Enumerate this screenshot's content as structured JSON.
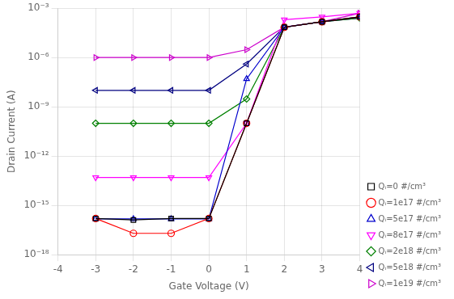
{
  "chart_data": {
    "type": "line",
    "xlabel": "Gate Voltage (V)",
    "ylabel": "Drain Current (A)",
    "x": [
      -3,
      -2,
      -1,
      0,
      1,
      2,
      3,
      4
    ],
    "series": [
      {
        "name": "Qᵢ=0 #/cm³",
        "color": "#000000",
        "marker": "square",
        "values": [
          1.6e-16,
          1.3e-16,
          1.6e-16,
          1.6e-16,
          1e-10,
          7e-05,
          0.00015,
          0.0003
        ]
      },
      {
        "name": "Qᵢ=1e17 #/cm³",
        "color": "#ff0000",
        "marker": "circle",
        "values": [
          1.6e-16,
          2e-17,
          2e-17,
          1.6e-16,
          1e-10,
          7e-05,
          0.00015,
          0.0003
        ]
      },
      {
        "name": "Qᵢ=5e17 #/cm³",
        "color": "#0000cc",
        "marker": "triangle-up",
        "values": [
          1.5e-16,
          1.5e-16,
          1.5e-16,
          1.5e-16,
          5e-08,
          7e-05,
          0.00015,
          0.0003
        ]
      },
      {
        "name": "Qᵢ=8e17 #/cm³",
        "color": "#ff00ff",
        "marker": "triangle-down",
        "values": [
          5e-14,
          5e-14,
          5e-14,
          5e-14,
          1e-10,
          0.0002,
          0.0003,
          0.0005
        ]
      },
      {
        "name": "Qᵢ=2e18 #/cm³",
        "color": "#008000",
        "marker": "diamond",
        "values": [
          1e-10,
          1e-10,
          1e-10,
          1e-10,
          3e-09,
          7e-05,
          0.00015,
          0.00025
        ]
      },
      {
        "name": "Qᵢ=5e18 #/cm³",
        "color": "#000080",
        "marker": "triangle-left",
        "values": [
          1e-08,
          1e-08,
          1e-08,
          1e-08,
          4e-07,
          7e-05,
          0.00015,
          0.00025
        ]
      },
      {
        "name": "Qᵢ=1e19 #/cm³",
        "color": "#cc00cc",
        "marker": "triangle-right",
        "values": [
          1e-06,
          1e-06,
          1e-06,
          1e-06,
          3e-06,
          7e-05,
          0.00015,
          0.0005
        ]
      }
    ],
    "xlim": [
      -4,
      4
    ],
    "xticks": [
      -4,
      -3,
      -2,
      -1,
      0,
      1,
      2,
      3,
      4
    ],
    "ylim": [
      1e-18,
      0.001
    ],
    "yticks": [
      {
        "value": 1e-18,
        "label": "10⁻¹⁸"
      },
      {
        "value": 1e-15,
        "label": "10⁻¹⁵"
      },
      {
        "value": 1e-12,
        "label": "10⁻¹²"
      },
      {
        "value": 1e-09,
        "label": "10⁻⁹"
      },
      {
        "value": 1e-06,
        "label": "10⁻⁶"
      },
      {
        "value": 0.001,
        "label": "10⁻³"
      }
    ],
    "log": "y",
    "grid": true,
    "legend": "lower right"
  }
}
